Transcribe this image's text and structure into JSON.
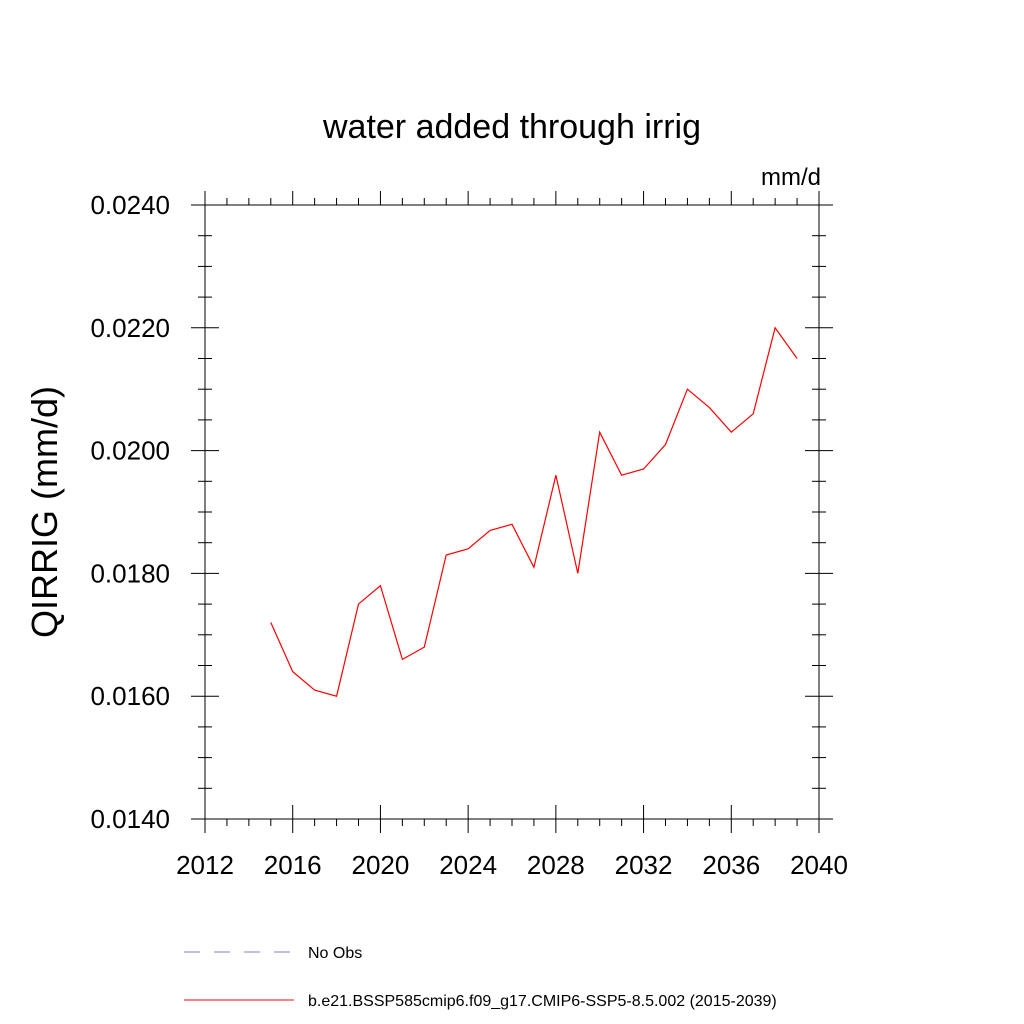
{
  "chart_data": {
    "type": "line",
    "title": "water added through irrig",
    "units_label": "mm/d",
    "xlabel": "",
    "ylabel": "QIRRIG  (mm/d)",
    "xlim": [
      2012,
      2040
    ],
    "ylim": [
      0.014,
      0.024
    ],
    "x_ticks": [
      2012,
      2016,
      2020,
      2024,
      2028,
      2032,
      2036,
      2040
    ],
    "x_tick_labels": [
      "2012",
      "2016",
      "2020",
      "2024",
      "2028",
      "2032",
      "2036",
      "2040"
    ],
    "y_ticks": [
      0.014,
      0.016,
      0.018,
      0.02,
      0.022,
      0.024
    ],
    "y_tick_labels": [
      "0.0140",
      "0.0160",
      "0.0180",
      "0.0200",
      "0.0220",
      "0.0240"
    ],
    "grid": false,
    "legend_position": "bottom",
    "series": [
      {
        "name": "b.e21.BSSP585cmip6.f09_g17.CMIP6-SSP5-8.5.002 (2015-2039)",
        "color": "#ff0000",
        "line_style": "solid",
        "x": [
          2015,
          2016,
          2017,
          2018,
          2019,
          2020,
          2021,
          2022,
          2023,
          2024,
          2025,
          2026,
          2027,
          2028,
          2029,
          2030,
          2031,
          2032,
          2033,
          2034,
          2035,
          2036,
          2037,
          2038,
          2039
        ],
        "y": [
          0.0172,
          0.0164,
          0.0161,
          0.016,
          0.0175,
          0.0178,
          0.0166,
          0.0168,
          0.0183,
          0.0184,
          0.0187,
          0.0188,
          0.0181,
          0.0196,
          0.018,
          0.0203,
          0.0196,
          0.0197,
          0.0201,
          0.021,
          0.0207,
          0.0203,
          0.0206,
          0.022,
          0.0215
        ]
      },
      {
        "name": "No Obs",
        "color": "#8080c0",
        "line_style": "dashed",
        "x": [],
        "y": []
      }
    ]
  }
}
